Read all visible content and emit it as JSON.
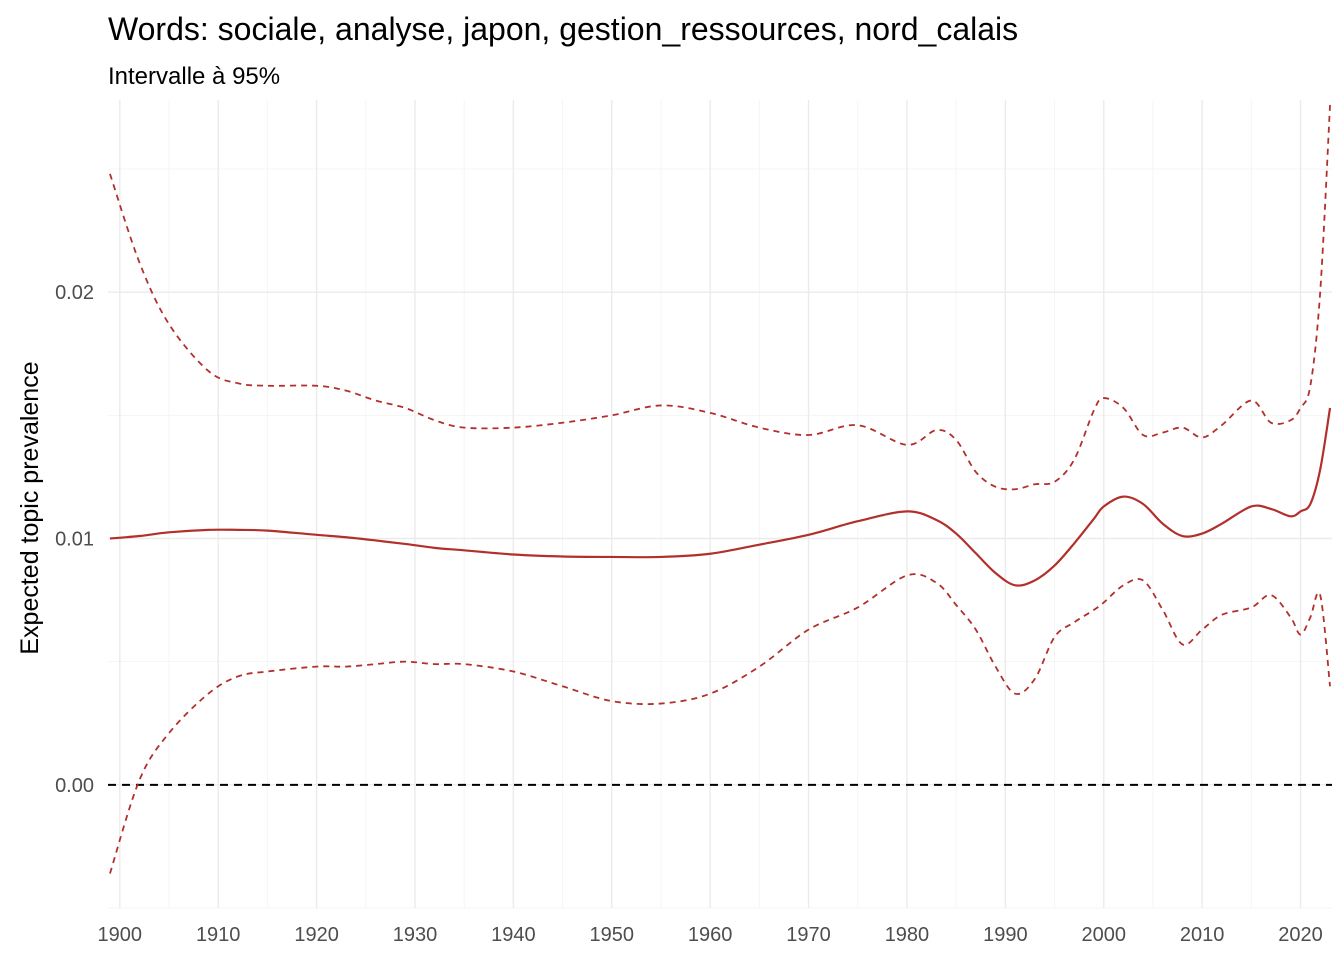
{
  "chart_data": {
    "type": "line",
    "title": "Words: sociale, analyse, japon, gestion_ressources, nord_calais",
    "subtitle": "Intervalle à 95%",
    "xlabel": "",
    "ylabel": "Expected topic prevalence",
    "xlim": [
      1898.8,
      2023.2
    ],
    "ylim": [
      -0.005,
      0.0278
    ],
    "x_ticks": [
      1900,
      1910,
      1920,
      1930,
      1940,
      1950,
      1960,
      1970,
      1980,
      1990,
      2000,
      2010,
      2020
    ],
    "x_tick_labels": [
      "1900",
      "1910",
      "1920",
      "1930",
      "1940",
      "1950",
      "1960",
      "1970",
      "1980",
      "1990",
      "2000",
      "2010",
      "2020"
    ],
    "y_ticks": [
      0.0,
      0.01,
      0.02
    ],
    "y_tick_labels": [
      "0.00",
      "0.01",
      "0.02"
    ],
    "y_minor_ticks": [
      -0.005,
      0.005,
      0.015,
      0.025
    ],
    "grid": true,
    "legend": "none",
    "colors": {
      "series": "#b2302b",
      "reference": "#000000"
    },
    "reference_line": {
      "y": 0.0,
      "style": "dashed"
    },
    "x": [
      1899,
      1902,
      1905,
      1909,
      1912,
      1915,
      1920,
      1923,
      1926,
      1929,
      1932,
      1935,
      1940,
      1945,
      1950,
      1955,
      1960,
      1965,
      1970,
      1975,
      1980,
      1983,
      1985,
      1987,
      1989,
      1991,
      1993,
      1995,
      1997,
      1999,
      2000,
      2002,
      2004,
      2006,
      2008,
      2010,
      2012,
      2015,
      2017,
      2019,
      2020,
      2021,
      2022,
      2023
    ],
    "series": [
      {
        "style": "solid",
        "values": [
          0.01,
          0.0101,
          0.01025,
          0.01035,
          0.01035,
          0.01032,
          0.01015,
          0.01005,
          0.00992,
          0.00978,
          0.00962,
          0.00952,
          0.00935,
          0.00927,
          0.00925,
          0.00925,
          0.00938,
          0.00975,
          0.01015,
          0.0107,
          0.0111,
          0.01075,
          0.0102,
          0.0094,
          0.0086,
          0.0081,
          0.0083,
          0.0089,
          0.0098,
          0.0108,
          0.0113,
          0.0117,
          0.0114,
          0.0106,
          0.0101,
          0.0102,
          0.0106,
          0.0113,
          0.0112,
          0.0109,
          0.0111,
          0.0114,
          0.0128,
          0.0153
        ]
      },
      {
        "style": "dashed",
        "values": [
          0.0248,
          0.0212,
          0.0187,
          0.0168,
          0.0163,
          0.0162,
          0.0162,
          0.016,
          0.0156,
          0.0153,
          0.0148,
          0.0145,
          0.0145,
          0.0147,
          0.015,
          0.0154,
          0.0151,
          0.0145,
          0.0142,
          0.0146,
          0.0138,
          0.0144,
          0.014,
          0.0127,
          0.0121,
          0.012,
          0.0122,
          0.0123,
          0.0132,
          0.0152,
          0.0157,
          0.0153,
          0.0142,
          0.0143,
          0.0145,
          0.0141,
          0.0146,
          0.0156,
          0.0147,
          0.0148,
          0.0153,
          0.0162,
          0.02,
          0.0276
        ]
      },
      {
        "style": "dashed",
        "values": [
          -0.0036,
          0.0002,
          0.0021,
          0.0037,
          0.0044,
          0.0046,
          0.0048,
          0.0048,
          0.0049,
          0.005,
          0.0049,
          0.0049,
          0.0046,
          0.004,
          0.0034,
          0.0033,
          0.0037,
          0.0048,
          0.0063,
          0.0072,
          0.0085,
          0.0082,
          0.0073,
          0.0063,
          0.0048,
          0.0037,
          0.0043,
          0.006,
          0.0066,
          0.0071,
          0.0074,
          0.0081,
          0.0083,
          0.0071,
          0.0057,
          0.0063,
          0.0069,
          0.0072,
          0.0077,
          0.0068,
          0.0061,
          0.0068,
          0.0077,
          0.004
        ]
      }
    ]
  }
}
